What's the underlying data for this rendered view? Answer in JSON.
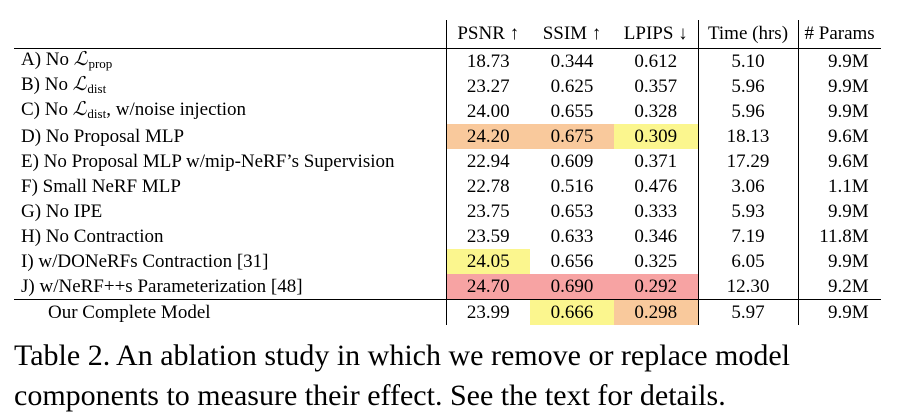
{
  "table": {
    "headers": [
      "",
      "PSNR ↑",
      "SSIM ↑",
      "LPIPS ↓",
      "Time (hrs)",
      "# Params"
    ],
    "rows": [
      {
        "label": "A) No ",
        "sym": "ℒ",
        "sub": "prop",
        "rest": "",
        "psnr": "18.73",
        "ssim": "0.344",
        "lpips": "0.612",
        "time": "5.10",
        "params": "9.9M"
      },
      {
        "label": "B) No ",
        "sym": "ℒ",
        "sub": "dist",
        "rest": "",
        "psnr": "23.27",
        "ssim": "0.625",
        "lpips": "0.357",
        "time": "5.96",
        "params": "9.9M"
      },
      {
        "label": "C) No ",
        "sym": "ℒ",
        "sub": "dist",
        "rest": ", w/noise injection",
        "psnr": "24.00",
        "ssim": "0.655",
        "lpips": "0.328",
        "time": "5.96",
        "params": "9.9M"
      },
      {
        "label": "D) No Proposal MLP",
        "psnr": "24.20",
        "ssim": "0.675",
        "lpips": "0.309",
        "time": "18.13",
        "params": "9.6M",
        "hl": {
          "psnr": "orange",
          "ssim": "orange",
          "lpips": "yellow"
        }
      },
      {
        "label": "E) No Proposal MLP w/mip-NeRF’s Supervision",
        "psnr": "22.94",
        "ssim": "0.609",
        "lpips": "0.371",
        "time": "17.29",
        "params": "9.6M"
      },
      {
        "label": "F) Small NeRF MLP",
        "psnr": "22.78",
        "ssim": "0.516",
        "lpips": "0.476",
        "time": "3.06",
        "params": "1.1M"
      },
      {
        "label": "G) No IPE",
        "psnr": "23.75",
        "ssim": "0.653",
        "lpips": "0.333",
        "time": "5.93",
        "params": "9.9M"
      },
      {
        "label": "H) No Contraction",
        "psnr": "23.59",
        "ssim": "0.633",
        "lpips": "0.346",
        "time": "7.19",
        "params": "11.8M"
      },
      {
        "label": "I) w/DONeRFs Contraction [31]",
        "psnr": "24.05",
        "ssim": "0.656",
        "lpips": "0.325",
        "time": "6.05",
        "params": "9.9M",
        "hl": {
          "psnr": "yellow"
        }
      },
      {
        "label": "J) w/NeRF++s Parameterization [48]",
        "psnr": "24.70",
        "ssim": "0.690",
        "lpips": "0.292",
        "time": "12.30",
        "params": "9.2M",
        "hl": {
          "psnr": "red",
          "ssim": "red",
          "lpips": "red"
        }
      },
      {
        "label": "Our Complete Model",
        "psnr": "23.99",
        "ssim": "0.666",
        "lpips": "0.298",
        "time": "5.97",
        "params": "9.9M",
        "hl": {
          "ssim": "yellow",
          "lpips": "orange"
        },
        "last": true
      }
    ]
  },
  "caption": "Table 2. An ablation study in which we remove or replace model components to measure their effect. See the text for details.",
  "colors": {
    "red": "#f7a3a3",
    "orange": "#f9c99c",
    "yellow": "#fbf68e"
  }
}
